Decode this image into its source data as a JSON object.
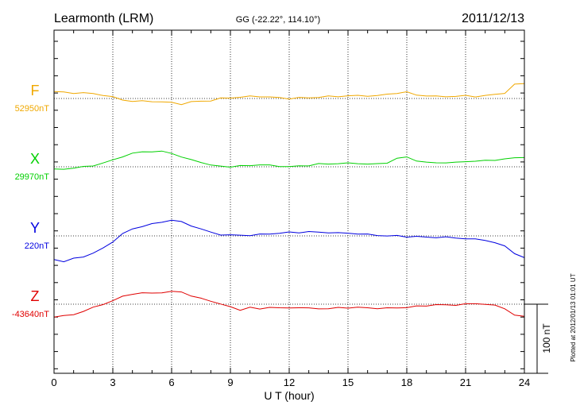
{
  "chart_data": {
    "type": "line",
    "title": "Learmonth (LRM)",
    "subtitle": "GG (-22.22°, 114.10°)",
    "date": "2011/12/13",
    "xlabel": "U T (hour)",
    "xlim": [
      0,
      24
    ],
    "xticks": [
      "0",
      "3",
      "6",
      "9",
      "12",
      "15",
      "18",
      "21",
      "24"
    ],
    "grid": true,
    "scale_bar_label": "100 nT",
    "plotted_note": "Plotted at 2012/01/13 01:01  UT",
    "x": [
      0,
      0.5,
      1,
      1.5,
      2,
      2.5,
      3,
      3.5,
      4,
      4.5,
      5,
      5.5,
      6,
      6.5,
      7,
      7.5,
      8,
      8.5,
      9,
      9.5,
      10,
      10.5,
      11,
      11.5,
      12,
      12.5,
      13,
      13.5,
      14,
      14.5,
      15,
      15.5,
      16,
      16.5,
      17,
      17.5,
      18,
      18.5,
      19,
      19.5,
      20,
      20.5,
      21,
      21.5,
      22,
      22.5,
      23,
      23.5,
      24
    ],
    "series": [
      {
        "name": "F",
        "baseline_label": "52950nT",
        "color": "#f0a800",
        "values": [
          10,
          9,
          8,
          8,
          7,
          5,
          2,
          -2,
          -4,
          -4,
          -4,
          -5,
          -6,
          -8,
          -5,
          -4,
          -3,
          0,
          1,
          2,
          3,
          3,
          2,
          1,
          0,
          1,
          1,
          2,
          3,
          3,
          4,
          4,
          4,
          4,
          6,
          8,
          9,
          5,
          4,
          3,
          3,
          3,
          4,
          3,
          4,
          6,
          8,
          20,
          22
        ]
      },
      {
        "name": "X",
        "baseline_label": "29970nT",
        "color": "#00d000",
        "values": [
          -4,
          -3,
          -2,
          0,
          2,
          5,
          10,
          15,
          19,
          22,
          22,
          22,
          20,
          14,
          10,
          7,
          2,
          1,
          0,
          1,
          2,
          3,
          2,
          1,
          0,
          1,
          2,
          4,
          4,
          5,
          5,
          5,
          4,
          4,
          6,
          12,
          14,
          9,
          6,
          6,
          6,
          6,
          8,
          8,
          9,
          10,
          11,
          13,
          14
        ]
      },
      {
        "name": "Y",
        "baseline_label": "220nT",
        "color": "#0000e0",
        "values": [
          -34,
          -37,
          -33,
          -30,
          -25,
          -18,
          -8,
          3,
          10,
          14,
          17,
          20,
          23,
          20,
          15,
          10,
          5,
          2,
          1,
          1,
          1,
          2,
          3,
          4,
          5,
          5,
          6,
          5,
          5,
          4,
          4,
          3,
          2,
          1,
          0,
          0,
          -1,
          -1,
          -2,
          -2,
          -2,
          -3,
          -4,
          -5,
          -6,
          -10,
          -15,
          -25,
          -32
        ]
      },
      {
        "name": "Z",
        "baseline_label": "-43640nT",
        "color": "#e00000",
        "values": [
          -18,
          -17,
          -15,
          -10,
          -5,
          0,
          5,
          11,
          15,
          16,
          16,
          17,
          18,
          18,
          12,
          8,
          5,
          0,
          -4,
          -8,
          -5,
          -7,
          -4,
          -6,
          -5,
          -5,
          -6,
          -6,
          -7,
          -5,
          -5,
          -5,
          -5,
          -6,
          -6,
          -5,
          -5,
          -3,
          -2,
          -1,
          -1,
          -1,
          0,
          1,
          0,
          -2,
          -6,
          -16,
          -18
        ]
      }
    ]
  }
}
